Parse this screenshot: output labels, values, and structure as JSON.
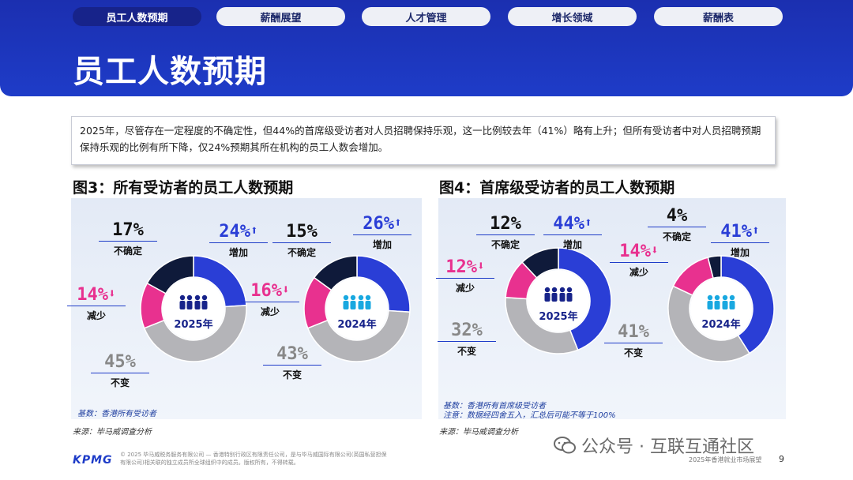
{
  "nav": {
    "tabs": [
      {
        "label": "员工人数预期",
        "active": true
      },
      {
        "label": "薪酬展望",
        "active": false
      },
      {
        "label": "人才管理",
        "active": false
      },
      {
        "label": "增长领域",
        "active": false
      },
      {
        "label": "薪酬表",
        "active": false
      }
    ]
  },
  "page_title": "员工人数预期",
  "intro_text": "2025年，尽管存在一定程度的不确定性，但44%的首席级受访者对人员招聘保持乐观，这一比例较去年（41%）略有上升；但所有受访者中对人员招聘预期保持乐观的比例有所下降，仅24%预期其所在机构的员工人数会增加。",
  "colors": {
    "increase": "#2a3ed6",
    "no_change": "#b4b4b8",
    "decrease": "#e8318f",
    "uncertain": "#0f1a3a",
    "header": "#1e3cc8"
  },
  "chart_data": [
    {
      "type": "pie",
      "title": "图3：所有受访者的员工人数预期",
      "base_note": "基数：香港所有受访者",
      "source": "来源：毕马威调查分析",
      "categories": [
        "增加",
        "不变",
        "减少",
        "不确定"
      ],
      "series": [
        {
          "name": "2025年",
          "values": [
            24,
            45,
            14,
            17
          ],
          "labels": [
            "24%",
            "45%",
            "14%",
            "17%"
          ],
          "icon": "people-crowd-icon"
        },
        {
          "name": "2024年",
          "values": [
            26,
            43,
            16,
            15
          ],
          "labels": [
            "26%",
            "43%",
            "16%",
            "15%"
          ],
          "icon": "people-crowd-icon"
        }
      ]
    },
    {
      "type": "pie",
      "title": "图4：首席级受访者的员工人数预期",
      "base_note": "基数：香港所有首席级受访者",
      "note2": "注意：数据经四舍五入，汇总后可能不等于100%",
      "source": "来源：毕马威调查分析",
      "categories": [
        "增加",
        "不变",
        "减少",
        "不确定"
      ],
      "series": [
        {
          "name": "2025年",
          "values": [
            44,
            32,
            12,
            12
          ],
          "labels": [
            "44%",
            "32%",
            "12%",
            "12%"
          ],
          "icon": "people-group-icon"
        },
        {
          "name": "2024年",
          "values": [
            41,
            41,
            14,
            4
          ],
          "labels": [
            "41%",
            "41%",
            "14%",
            "4%"
          ],
          "icon": "people-group-icon"
        }
      ]
    }
  ],
  "footer": {
    "logo": "KPMG",
    "legal": "© 2025 毕马威税务服务有限公司 — 香港特别行政区有限责任公司，是与毕马威国际有限公司(英国私营担保有限公司)相关联的独立成员所全球组织中的成员。版权所有，不得转载。",
    "report_name": "2025年香港就业市场展望",
    "page": "9"
  },
  "watermark": "公众号 · 互联互通社区"
}
